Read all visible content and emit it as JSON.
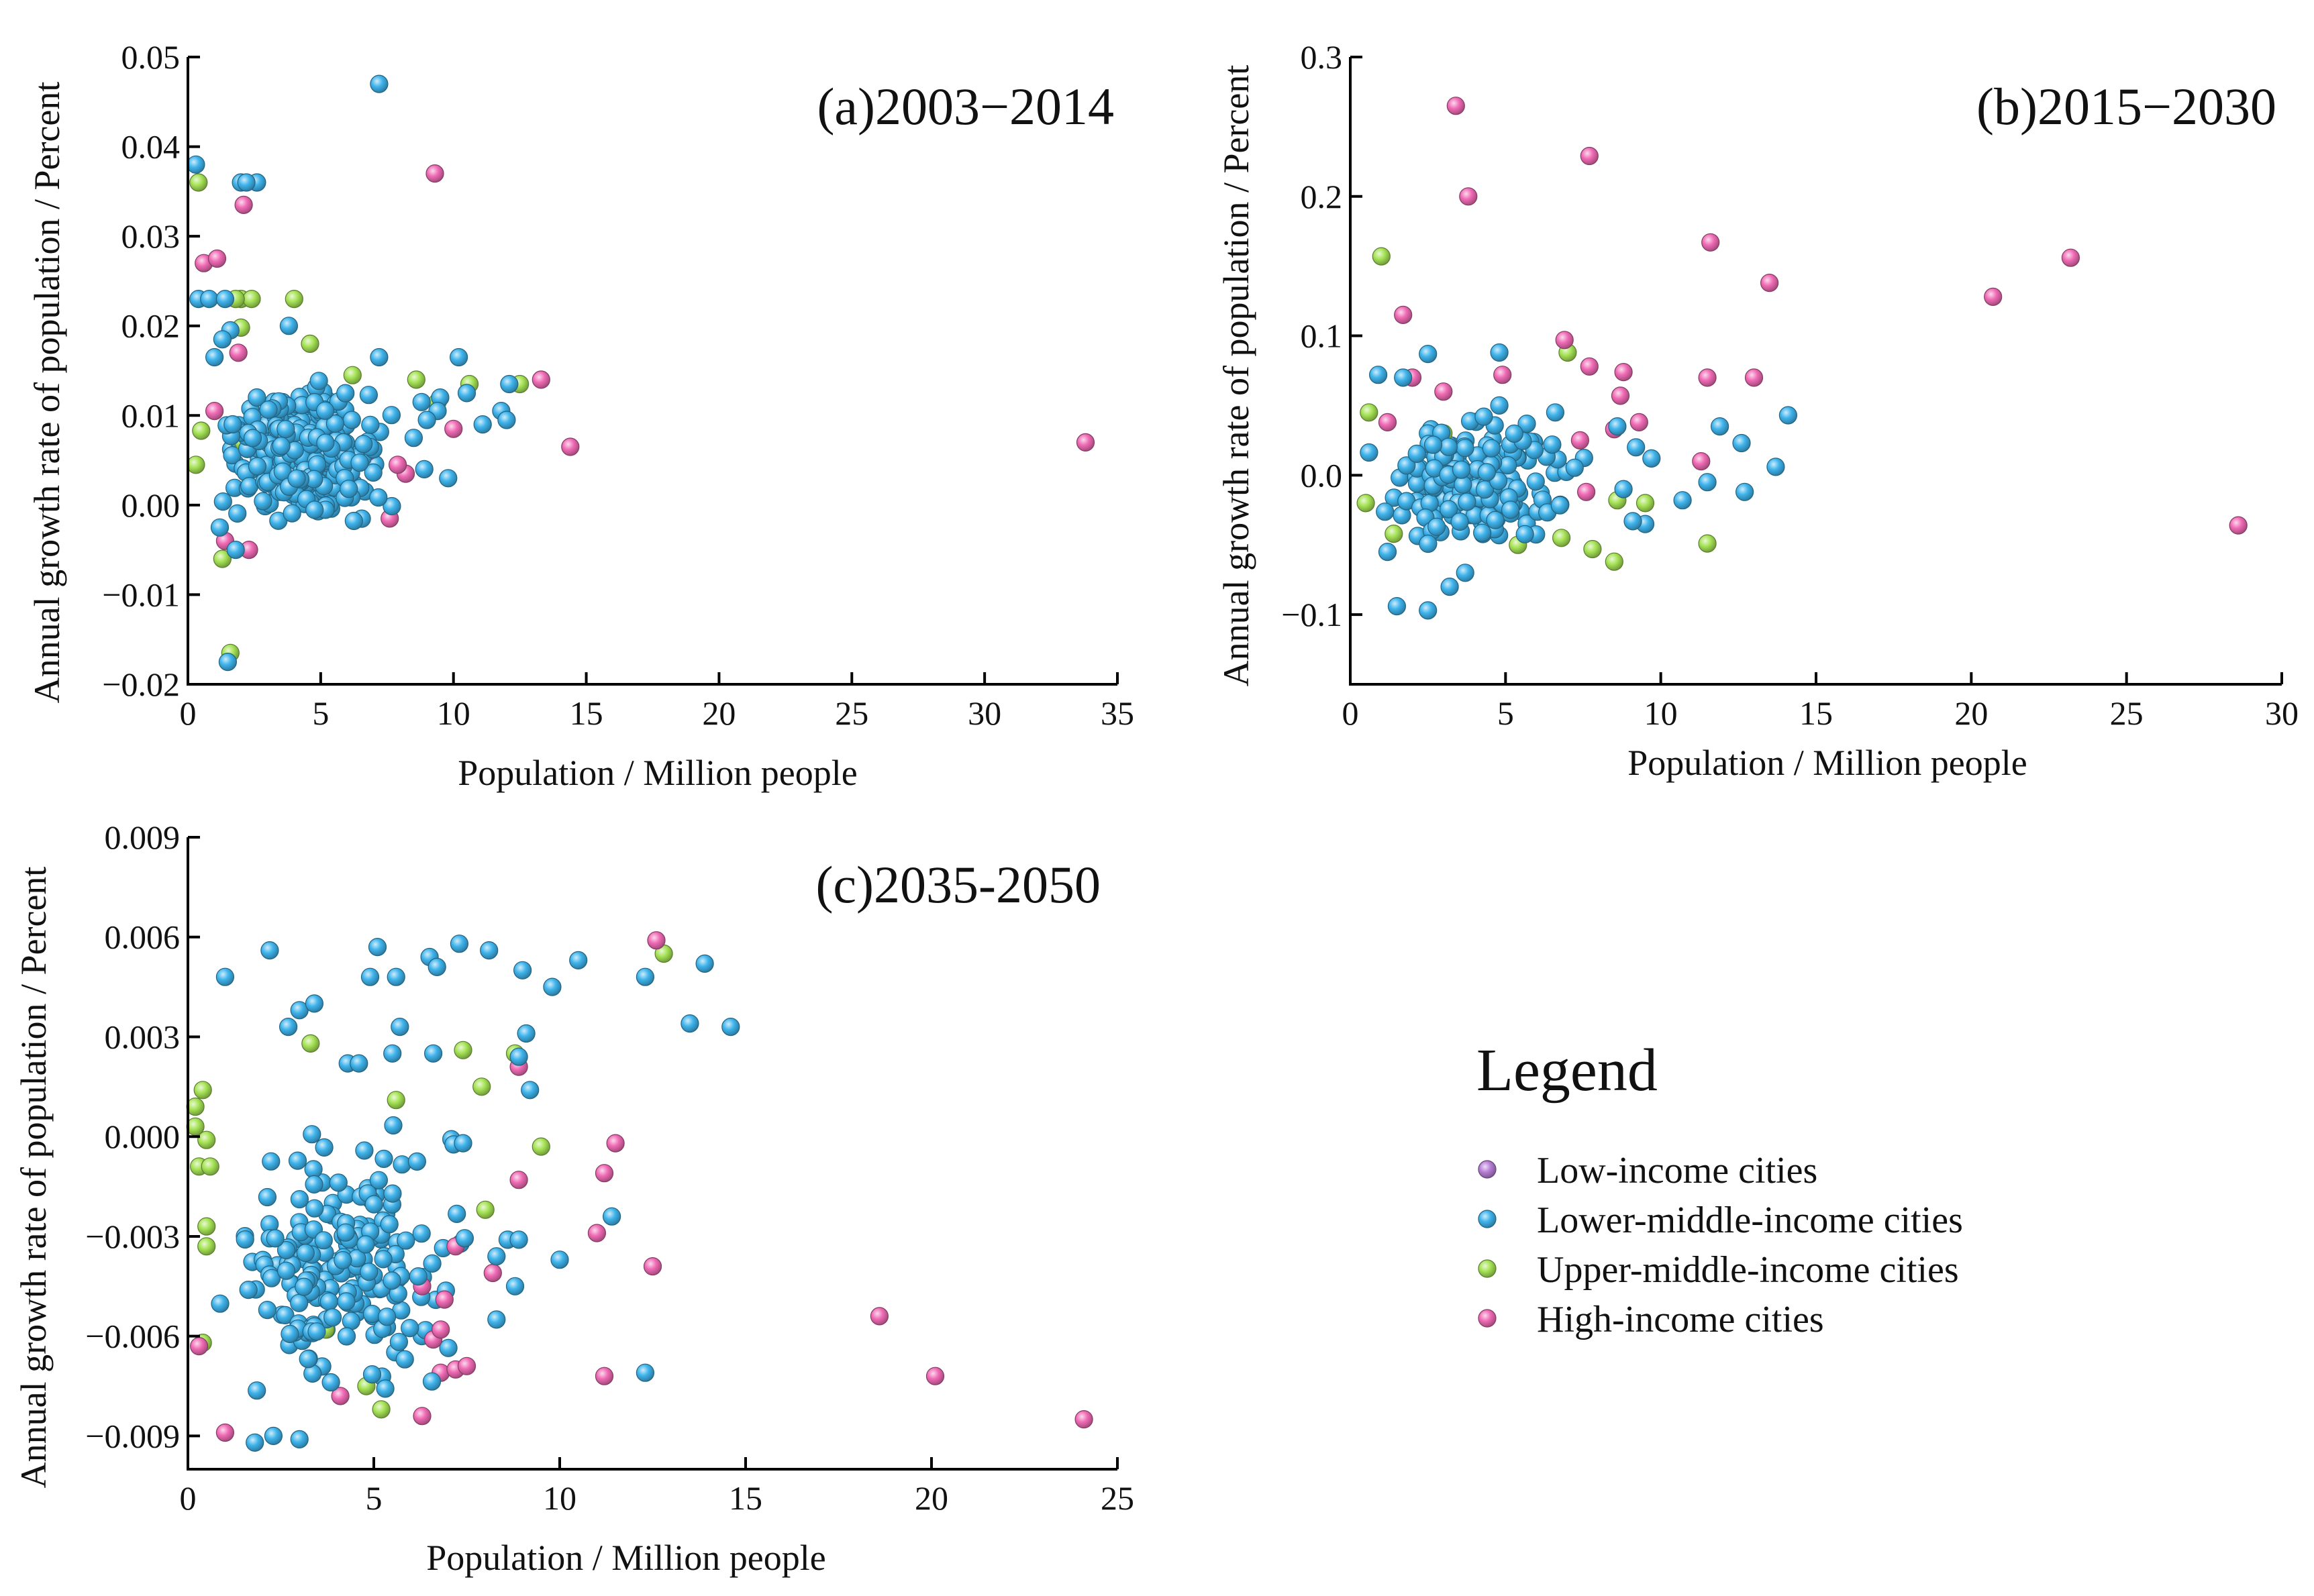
{
  "colors": {
    "low": "#b87ed6",
    "lower_middle": "#3fb4ec",
    "upper_middle": "#a6e356",
    "high": "#f06bb5"
  },
  "legend": {
    "title": "Legend",
    "items": [
      {
        "key": "low",
        "label": "Low-income cities"
      },
      {
        "key": "lower_middle",
        "label": "Lower-middle-income cities"
      },
      {
        "key": "upper_middle",
        "label": "Upper-middle-income cities"
      },
      {
        "key": "high",
        "label": "High-income cities"
      }
    ]
  },
  "chart_data": [
    {
      "type": "scatter",
      "title": "(a)2003−2014",
      "xlabel": "Population / Million people",
      "ylabel": "Annual growth rate of population / Percent",
      "xlim": [
        0,
        35
      ],
      "ylim": [
        -0.02,
        0.05
      ],
      "xticks": [
        0,
        5,
        10,
        15,
        20,
        25,
        30,
        35
      ],
      "yticks": [
        -0.02,
        -0.01,
        0.0,
        0.01,
        0.02,
        0.03,
        0.04,
        0.05
      ],
      "xtick_labels": [
        "0",
        "5",
        "10",
        "15",
        "20",
        "25",
        "30",
        "35"
      ],
      "ytick_labels": [
        "−0.02",
        "−0.01",
        "0.00",
        "0.01",
        "0.02",
        "0.03",
        "0.04",
        "0.05"
      ],
      "seed": 101,
      "cluster": {
        "key": "lower_middle",
        "n": 300,
        "x": [
          0.2,
          8.5
        ],
        "y": [
          -0.004,
          0.016
        ],
        "center_x": 3.5,
        "center_y": 0.006
      },
      "series": [
        {
          "name": "Low-income cities",
          "key": "low",
          "points": []
        },
        {
          "name": "Lower-middle-income cities",
          "key": "lower_middle",
          "points": [
            [
              7.2,
              0.047
            ],
            [
              0.3,
              0.038
            ],
            [
              2.0,
              0.036
            ],
            [
              2.6,
              0.036
            ],
            [
              2.2,
              0.036
            ],
            [
              0.4,
              0.023
            ],
            [
              0.8,
              0.023
            ],
            [
              1.4,
              0.023
            ],
            [
              1.6,
              0.0195
            ],
            [
              3.8,
              0.02
            ],
            [
              1.3,
              0.0185
            ],
            [
              1.0,
              0.0165
            ],
            [
              7.2,
              0.0165
            ],
            [
              10.2,
              0.0165
            ],
            [
              12.1,
              0.0135
            ],
            [
              11.8,
              0.0105
            ],
            [
              12.0,
              0.0095
            ],
            [
              11.1,
              0.009
            ],
            [
              10.5,
              0.0125
            ],
            [
              9.5,
              0.012
            ],
            [
              8.8,
              0.0115
            ],
            [
              9.4,
              0.0105
            ],
            [
              9.0,
              0.0095
            ],
            [
              8.5,
              0.0075
            ],
            [
              9.8,
              0.003
            ],
            [
              8.9,
              0.004
            ],
            [
              1.5,
              -0.0175
            ],
            [
              1.8,
              -0.005
            ],
            [
              1.2,
              -0.0025
            ]
          ]
        },
        {
          "name": "Upper-middle-income cities",
          "key": "upper_middle",
          "points": [
            [
              0.4,
              0.036
            ],
            [
              2.0,
              0.023
            ],
            [
              2.4,
              0.023
            ],
            [
              4.0,
              0.023
            ],
            [
              1.8,
              0.023
            ],
            [
              2.0,
              0.0198
            ],
            [
              4.6,
              0.018
            ],
            [
              0.5,
              0.0083
            ],
            [
              10.6,
              0.0135
            ],
            [
              12.5,
              0.0135
            ],
            [
              9.4,
              0.0115
            ],
            [
              8.6,
              0.014
            ],
            [
              6.2,
              0.0145
            ],
            [
              5.3,
              0.0
            ],
            [
              1.3,
              -0.006
            ],
            [
              1.6,
              -0.0165
            ],
            [
              2.1,
              0.007
            ],
            [
              0.3,
              0.0045
            ]
          ]
        },
        {
          "name": "High-income cities",
          "key": "high",
          "points": [
            [
              33.8,
              0.007
            ],
            [
              14.4,
              0.0065
            ],
            [
              13.3,
              0.014
            ],
            [
              10.0,
              0.0085
            ],
            [
              9.3,
              0.037
            ],
            [
              2.1,
              0.0335
            ],
            [
              0.6,
              0.027
            ],
            [
              1.1,
              0.0275
            ],
            [
              1.9,
              0.017
            ],
            [
              7.6,
              -0.0015
            ],
            [
              8.2,
              0.0035
            ],
            [
              2.3,
              -0.005
            ],
            [
              1.4,
              -0.004
            ],
            [
              6.8,
              0.006
            ],
            [
              7.9,
              0.0045
            ],
            [
              4.9,
              0.0045
            ],
            [
              6.1,
              0.0015
            ],
            [
              1.0,
              0.0105
            ]
          ]
        }
      ]
    },
    {
      "type": "scatter",
      "title": "(b)2015−2030",
      "xlabel": "Population / Million people",
      "ylabel": "Annual growth rate of population / Percent",
      "xlim": [
        0,
        30
      ],
      "ylim": [
        -0.15,
        0.3
      ],
      "xticks": [
        0,
        5,
        10,
        15,
        20,
        25,
        30
      ],
      "yticks": [
        -0.1,
        0.0,
        0.1,
        0.2,
        0.3
      ],
      "xtick_labels": [
        "0",
        "5",
        "10",
        "15",
        "20",
        "25",
        "30"
      ],
      "ytick_labels": [
        "−0.1",
        "0.0",
        "0.1",
        "0.2",
        "0.3"
      ],
      "seed": 202,
      "cluster": {
        "key": "lower_middle",
        "n": 190,
        "x": [
          0.1,
          8.0
        ],
        "y": [
          -0.06,
          0.05
        ],
        "center_x": 3.2,
        "center_y": -0.005
      },
      "series": [
        {
          "name": "Low-income cities",
          "key": "low",
          "points": []
        },
        {
          "name": "Lower-middle-income cities",
          "key": "lower_middle",
          "points": [
            [
              2.5,
              0.087
            ],
            [
              4.8,
              0.088
            ],
            [
              0.9,
              0.072
            ],
            [
              1.7,
              0.07
            ],
            [
              4.8,
              0.05
            ],
            [
              4.3,
              0.042
            ],
            [
              6.6,
              0.045
            ],
            [
              14.1,
              0.043
            ],
            [
              11.9,
              0.035
            ],
            [
              12.6,
              0.023
            ],
            [
              13.7,
              0.006
            ],
            [
              11.5,
              -0.005
            ],
            [
              12.7,
              -0.012
            ],
            [
              10.7,
              -0.018
            ],
            [
              9.5,
              -0.035
            ],
            [
              9.1,
              -0.033
            ],
            [
              8.8,
              -0.01
            ],
            [
              9.2,
              0.02
            ],
            [
              8.6,
              0.035
            ],
            [
              9.7,
              0.012
            ],
            [
              1.5,
              -0.094
            ],
            [
              2.5,
              -0.097
            ],
            [
              3.2,
              -0.08
            ],
            [
              3.7,
              -0.07
            ],
            [
              1.2,
              -0.055
            ]
          ]
        },
        {
          "name": "Upper-middle-income cities",
          "key": "upper_middle",
          "points": [
            [
              1.0,
              0.157
            ],
            [
              7.0,
              0.088
            ],
            [
              0.6,
              0.045
            ],
            [
              11.5,
              -0.049
            ],
            [
              8.5,
              -0.062
            ],
            [
              7.8,
              -0.053
            ],
            [
              9.5,
              -0.02
            ],
            [
              8.6,
              -0.018
            ],
            [
              6.8,
              -0.045
            ],
            [
              5.4,
              -0.05
            ],
            [
              0.5,
              -0.02
            ],
            [
              1.4,
              -0.042
            ],
            [
              3.0,
              0.03
            ]
          ]
        },
        {
          "name": "High-income cities",
          "key": "high",
          "points": [
            [
              3.4,
              0.265
            ],
            [
              7.7,
              0.229
            ],
            [
              3.8,
              0.2
            ],
            [
              11.6,
              0.167
            ],
            [
              13.5,
              0.138
            ],
            [
              23.2,
              0.156
            ],
            [
              20.7,
              0.128
            ],
            [
              28.6,
              -0.036
            ],
            [
              11.5,
              0.07
            ],
            [
              13.0,
              0.07
            ],
            [
              11.3,
              0.01
            ],
            [
              6.9,
              0.097
            ],
            [
              7.7,
              0.078
            ],
            [
              8.8,
              0.074
            ],
            [
              8.7,
              0.057
            ],
            [
              9.3,
              0.038
            ],
            [
              8.5,
              0.033
            ],
            [
              7.4,
              0.025
            ],
            [
              1.7,
              0.115
            ],
            [
              2.0,
              0.07
            ],
            [
              3.0,
              0.06
            ],
            [
              4.9,
              0.072
            ],
            [
              7.6,
              -0.012
            ],
            [
              1.2,
              0.038
            ]
          ]
        }
      ]
    },
    {
      "type": "scatter",
      "title": "(c)2035-2050",
      "xlabel": "Population / Million people",
      "ylabel": "Annual growth rate of population / Percent",
      "xlim": [
        0,
        25
      ],
      "ylim": [
        -0.01,
        0.009
      ],
      "xticks": [
        0,
        5,
        10,
        15,
        20,
        25
      ],
      "yticks": [
        -0.009,
        -0.006,
        -0.003,
        0.0,
        0.003,
        0.006,
        0.009
      ],
      "xtick_labels": [
        "0",
        "5",
        "10",
        "15",
        "20",
        "25"
      ],
      "ytick_labels": [
        "−0.009",
        "−0.006",
        "−0.003",
        "0.000",
        "0.003",
        "0.006",
        "0.009"
      ],
      "seed": 303,
      "cluster": {
        "key": "lower_middle",
        "n": 200,
        "x": [
          0.2,
          8.0
        ],
        "y": [
          -0.0088,
          0.0008
        ],
        "center_x": 3.0,
        "center_y": -0.004
      },
      "series": [
        {
          "name": "Low-income cities",
          "key": "low",
          "points": []
        },
        {
          "name": "Lower-middle-income cities",
          "key": "lower_middle",
          "points": [
            [
              2.2,
              0.0056
            ],
            [
              5.1,
              0.0057
            ],
            [
              6.5,
              0.0054
            ],
            [
              6.7,
              0.0051
            ],
            [
              7.3,
              0.0058
            ],
            [
              8.1,
              0.0056
            ],
            [
              9.0,
              0.005
            ],
            [
              9.8,
              0.0045
            ],
            [
              10.5,
              0.0053
            ],
            [
              12.3,
              0.0048
            ],
            [
              13.9,
              0.0052
            ],
            [
              13.5,
              0.0034
            ],
            [
              14.6,
              0.0033
            ],
            [
              9.1,
              0.0031
            ],
            [
              8.9,
              0.0024
            ],
            [
              9.2,
              0.0014
            ],
            [
              1.0,
              0.0048
            ],
            [
              2.7,
              0.0033
            ],
            [
              3.0,
              0.0038
            ],
            [
              3.4,
              0.004
            ],
            [
              4.9,
              0.0048
            ],
            [
              5.6,
              0.0048
            ],
            [
              6.6,
              0.0025
            ],
            [
              5.7,
              0.0033
            ],
            [
              4.3,
              0.0022
            ],
            [
              4.6,
              0.0022
            ],
            [
              5.5,
              0.0025
            ],
            [
              7.4,
              -0.0002
            ],
            [
              10.0,
              -0.0037
            ],
            [
              11.4,
              -0.0024
            ],
            [
              12.3,
              -0.0071
            ],
            [
              8.8,
              -0.0045
            ],
            [
              8.3,
              -0.0055
            ],
            [
              1.8,
              -0.0092
            ],
            [
              2.3,
              -0.009
            ],
            [
              3.0,
              -0.0091
            ],
            [
              8.6,
              -0.0031
            ],
            [
              8.9,
              -0.0031
            ],
            [
              8.3,
              -0.0036
            ]
          ]
        },
        {
          "name": "Upper-middle-income cities",
          "key": "upper_middle",
          "points": [
            [
              12.8,
              0.0055
            ],
            [
              7.4,
              0.0026
            ],
            [
              7.9,
              0.0015
            ],
            [
              8.8,
              0.0025
            ],
            [
              9.5,
              -0.0003
            ],
            [
              3.3,
              0.0028
            ],
            [
              5.6,
              0.0011
            ],
            [
              0.2,
              0.0009
            ],
            [
              0.4,
              0.0014
            ],
            [
              0.5,
              -0.0001
            ],
            [
              0.3,
              -0.0009
            ],
            [
              0.6,
              -0.0009
            ],
            [
              0.5,
              -0.0027
            ],
            [
              0.5,
              -0.0033
            ],
            [
              0.4,
              -0.0062
            ],
            [
              8.0,
              -0.0022
            ],
            [
              4.8,
              -0.0075
            ],
            [
              5.2,
              -0.0082
            ],
            [
              3.7,
              -0.0058
            ],
            [
              0.2,
              0.0003
            ]
          ]
        },
        {
          "name": "High-income cities",
          "key": "high",
          "points": [
            [
              12.6,
              0.0059
            ],
            [
              8.9,
              0.0021
            ],
            [
              11.5,
              -0.0002
            ],
            [
              11.2,
              -0.0011
            ],
            [
              8.9,
              -0.0013
            ],
            [
              11.0,
              -0.0029
            ],
            [
              12.5,
              -0.0039
            ],
            [
              18.6,
              -0.0054
            ],
            [
              20.1,
              -0.0072
            ],
            [
              24.1,
              -0.0085
            ],
            [
              11.2,
              -0.0072
            ],
            [
              6.3,
              -0.0084
            ],
            [
              6.8,
              -0.0071
            ],
            [
              7.2,
              -0.007
            ],
            [
              7.5,
              -0.0069
            ],
            [
              6.6,
              -0.0061
            ],
            [
              6.8,
              -0.0058
            ],
            [
              6.9,
              -0.0049
            ],
            [
              6.3,
              -0.0045
            ],
            [
              7.2,
              -0.0033
            ],
            [
              8.2,
              -0.0041
            ],
            [
              4.1,
              -0.0078
            ],
            [
              1.0,
              -0.0089
            ],
            [
              0.3,
              -0.0063
            ]
          ]
        }
      ]
    }
  ]
}
